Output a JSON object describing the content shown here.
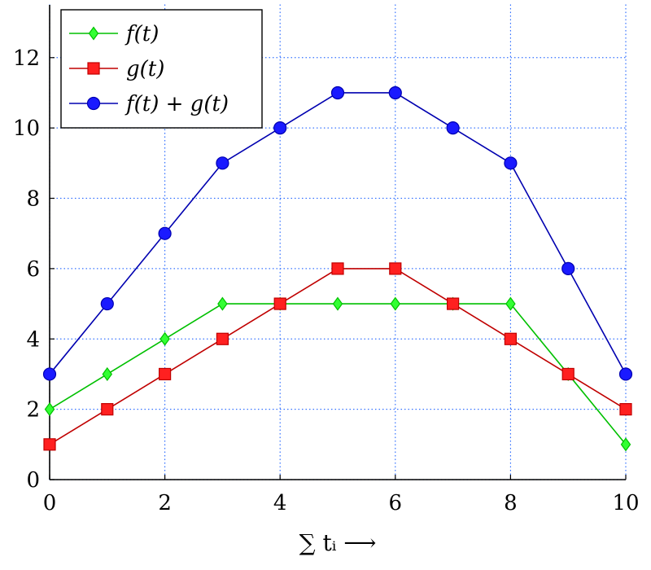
{
  "chart_data": {
    "type": "line",
    "x": [
      0,
      1,
      2,
      3,
      4,
      5,
      6,
      7,
      8,
      9,
      10
    ],
    "series": [
      {
        "name": "f(t)",
        "values": [
          2,
          3,
          4,
          5,
          5,
          5,
          5,
          5,
          5,
          3,
          1
        ],
        "color": "#00c000",
        "fill": "#33ff33",
        "marker": "diamond"
      },
      {
        "name": "g(t)",
        "values": [
          1,
          2,
          3,
          4,
          5,
          6,
          6,
          5,
          4,
          3,
          2
        ],
        "color": "#c00000",
        "fill": "#ff2020",
        "marker": "square"
      },
      {
        "name": "f(t) + g(t)",
        "values": [
          3,
          5,
          7,
          9,
          10,
          11,
          11,
          10,
          9,
          6,
          3
        ],
        "color": "#0000b0",
        "fill": "#1a1aff",
        "marker": "circle"
      }
    ],
    "xlabel": "∑ tᵢ ⟶",
    "ylabel": "",
    "xlim": [
      0,
      10
    ],
    "ylim": [
      0,
      13.5
    ],
    "x_ticks": [
      "0",
      "2",
      "4",
      "6",
      "8",
      "10"
    ],
    "y_ticks": [
      "0",
      "2",
      "4",
      "6",
      "8",
      "10",
      "12"
    ],
    "grid": true,
    "grid_color": "#2b6bff",
    "legend_position": "top-left"
  }
}
